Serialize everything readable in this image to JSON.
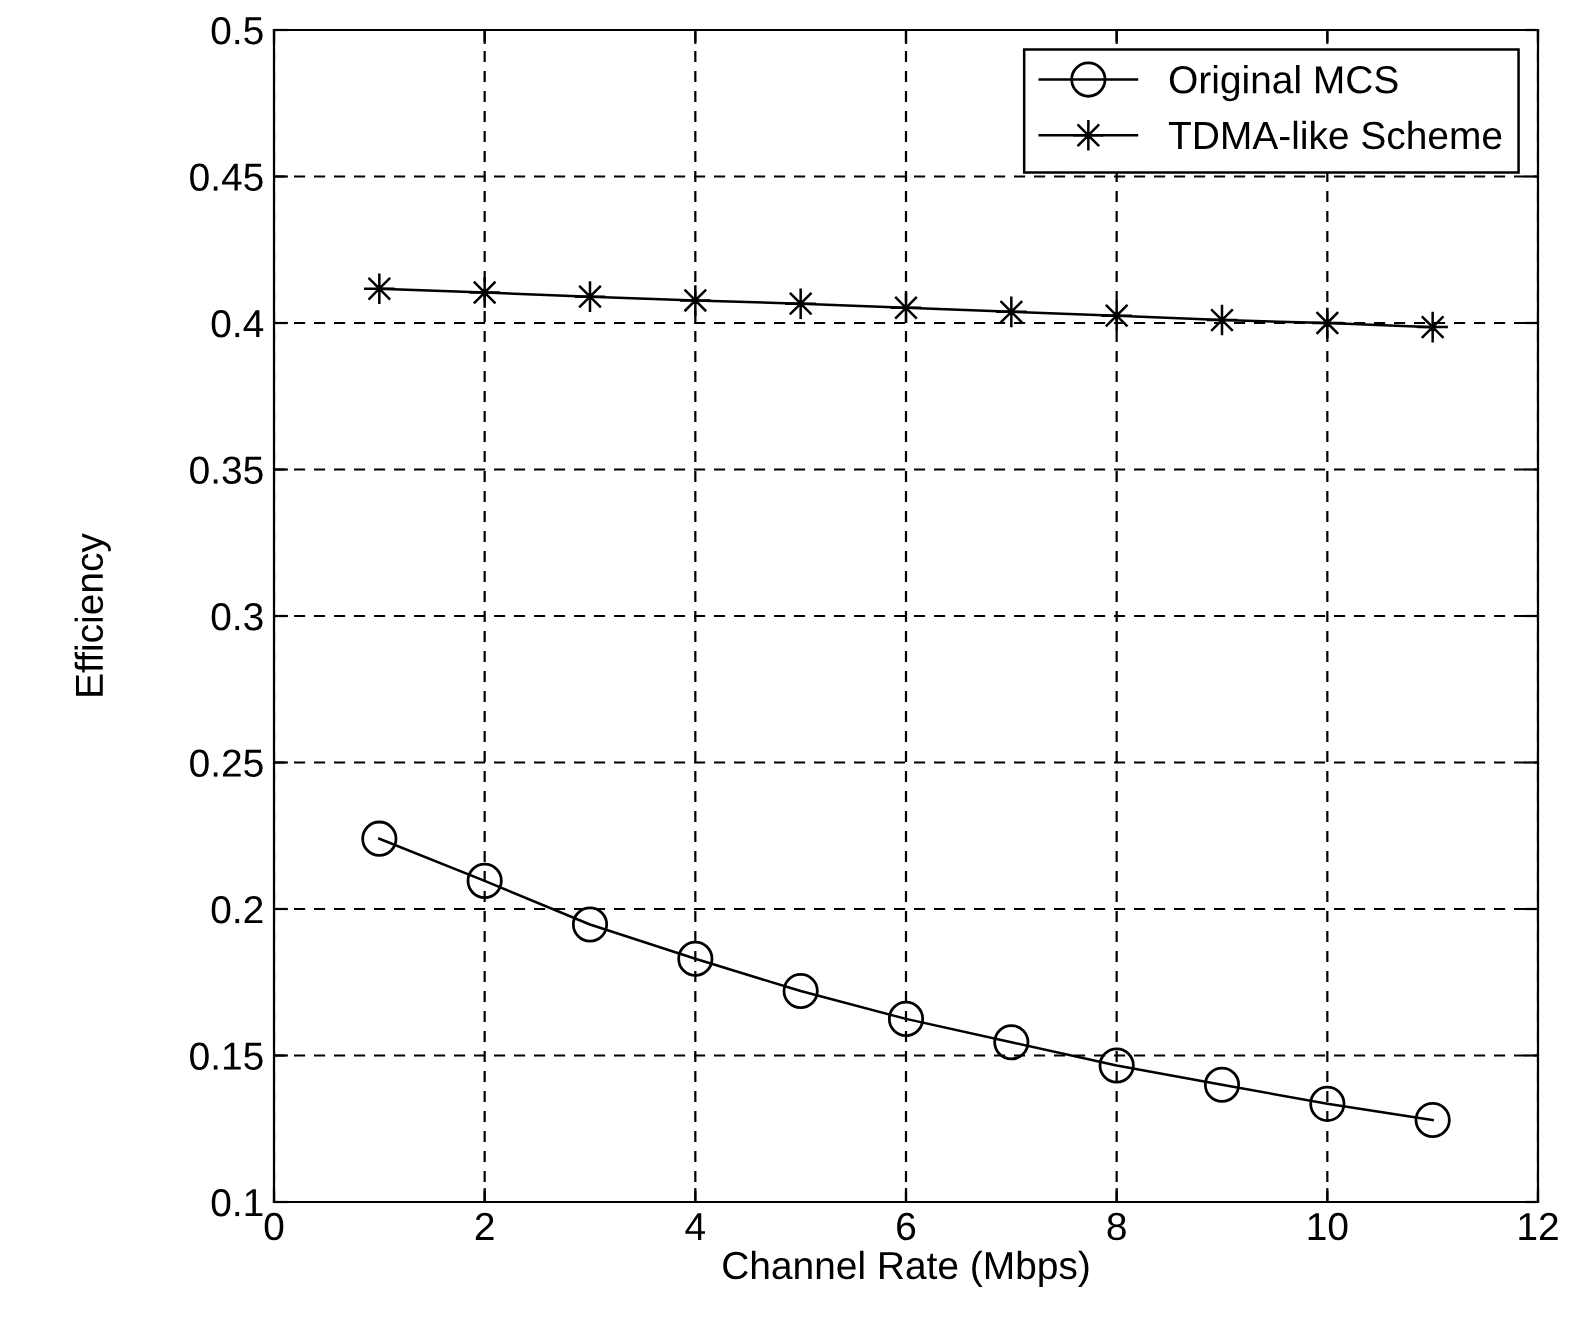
{
  "chart_data": {
    "type": "line",
    "xlabel": "Channel Rate (Mbps)",
    "ylabel": "Efficiency",
    "x": [
      1,
      2,
      3,
      4,
      5,
      6,
      7,
      8,
      9,
      10,
      11
    ],
    "series": [
      {
        "name": "Original MCS",
        "color": "#000000",
        "marker": "circle",
        "values": [
          0.224,
          0.2096,
          0.1947,
          0.183,
          0.172,
          0.1625,
          0.1545,
          0.1466,
          0.14,
          0.1335,
          0.128
        ]
      },
      {
        "name": "TDMA-like Scheme",
        "color": "#000000",
        "marker": "star",
        "values": [
          0.4117,
          0.4104,
          0.409,
          0.4077,
          0.4066,
          0.4052,
          0.4038,
          0.4025,
          0.401,
          0.4,
          0.3986
        ]
      }
    ],
    "xlim": [
      0,
      12
    ],
    "xticks": [
      0,
      2,
      4,
      6,
      8,
      10,
      12
    ],
    "ylim": [
      0.1,
      0.5
    ],
    "yticks": [
      0.1,
      0.15,
      0.2,
      0.25,
      0.3,
      0.35,
      0.4,
      0.45,
      0.5
    ],
    "grid": true,
    "legend": "top right",
    "line_style": "solid"
  }
}
